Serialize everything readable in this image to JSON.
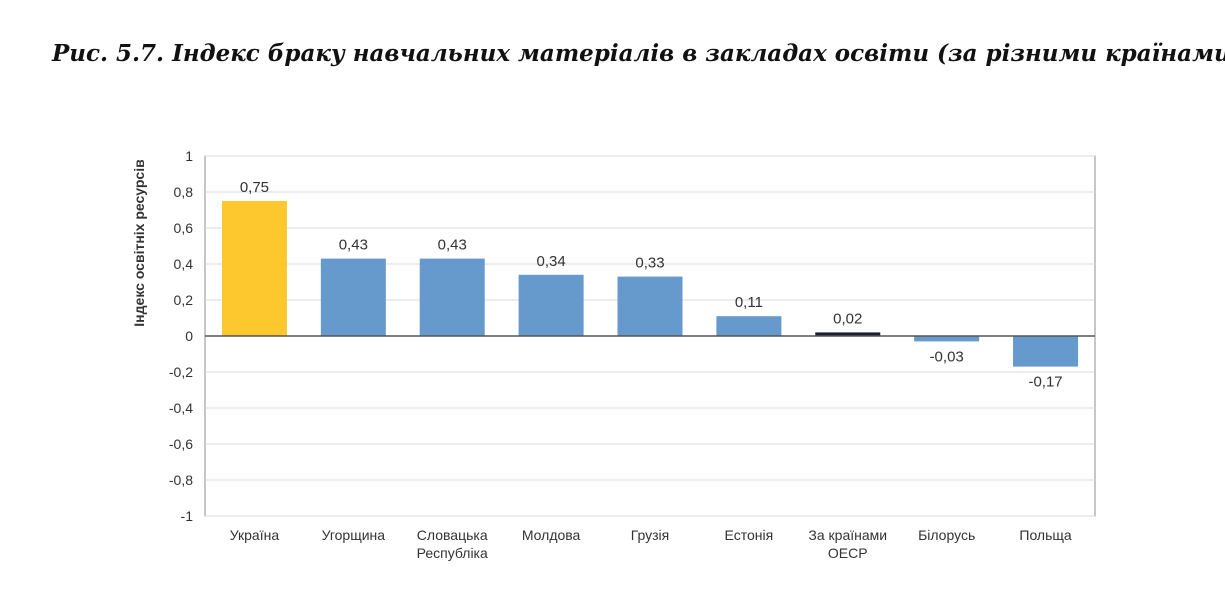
{
  "caption": "Рис. 5.7. Індекс браку навчальних матеріалів в закладах освіти (за різними країнами)",
  "chart_data": {
    "type": "bar",
    "title": "",
    "xlabel": "",
    "ylabel": "Індекс освітніх ресурсів",
    "ylim": [
      -1,
      1
    ],
    "yticks": [
      1,
      0.8,
      0.6,
      0.4,
      0.2,
      0,
      -0.2,
      -0.4,
      -0.6,
      -0.8,
      -1
    ],
    "ytick_labels": [
      "1",
      "0,8",
      "0,6",
      "0,4",
      "0,2",
      "0",
      "-0,2",
      "-0,4",
      "-0,6",
      "-0,8",
      "-1"
    ],
    "grid": true,
    "legend": "none",
    "categories": [
      [
        "Україна"
      ],
      [
        "Угорщина"
      ],
      [
        "Словацька",
        "Республіка"
      ],
      [
        "Молдова"
      ],
      [
        "Грузія"
      ],
      [
        "Естонія"
      ],
      [
        "За країнами",
        "ОЕСР"
      ],
      [
        "Білорусь"
      ],
      [
        "Польща"
      ]
    ],
    "values": [
      0.75,
      0.43,
      0.43,
      0.34,
      0.33,
      0.11,
      0.02,
      -0.03,
      -0.17
    ],
    "value_labels": [
      "0,75",
      "0,43",
      "0,43",
      "0,34",
      "0,33",
      "0,11",
      "0,02",
      "-0,03",
      "-0,17"
    ],
    "colors": [
      "#fcc82e",
      "#6699cc",
      "#6699cc",
      "#6699cc",
      "#6699cc",
      "#6699cc",
      "#1a2030",
      "#6699cc",
      "#6699cc"
    ]
  }
}
